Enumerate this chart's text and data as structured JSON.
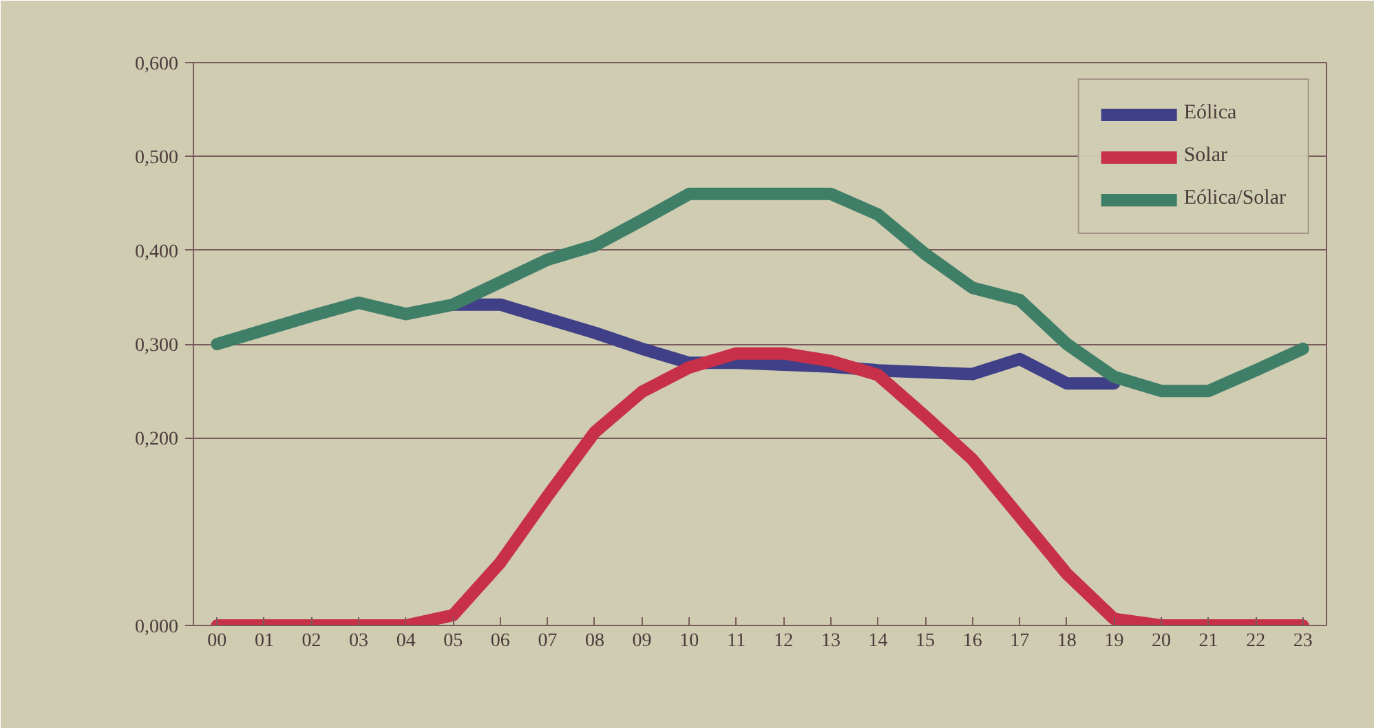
{
  "chart_data": {
    "type": "line",
    "categories": [
      "00",
      "01",
      "02",
      "03",
      "04",
      "05",
      "06",
      "07",
      "08",
      "09",
      "10",
      "11",
      "12",
      "13",
      "14",
      "15",
      "16",
      "17",
      "18",
      "19",
      "20",
      "21",
      "22",
      "23"
    ],
    "series": [
      {
        "name": "Eólica",
        "color": "#404088",
        "values": [
          null,
          null,
          null,
          null,
          null,
          0.342,
          0.342,
          0.327,
          0.312,
          0.295,
          0.28,
          0.28,
          0.278,
          0.276,
          0.272,
          0.27,
          0.268,
          0.284,
          0.258,
          0.258,
          null,
          null,
          null,
          null
        ]
      },
      {
        "name": "Solar",
        "color": "#c8304a",
        "values": [
          0,
          0,
          0,
          0,
          0,
          0.011,
          0.067,
          0.138,
          0.206,
          0.249,
          0.275,
          0.29,
          0.29,
          0.282,
          0.267,
          0.223,
          0.177,
          0.116,
          0.055,
          0.007,
          0,
          0,
          0,
          0
        ]
      },
      {
        "name": "Eólica/Solar",
        "color": "#3f7f68",
        "values": [
          0.3,
          0.315,
          0.33,
          0.344,
          0.332,
          0.342,
          0.366,
          0.39,
          0.405,
          0.432,
          0.46,
          0.46,
          0.46,
          0.46,
          0.438,
          0.396,
          0.36,
          0.347,
          0.3,
          0.265,
          0.25,
          0.25,
          0.272,
          0.295
        ]
      }
    ],
    "ylim": [
      0,
      0.6
    ],
    "yticks": [
      {
        "value": 0,
        "label": "0,000"
      },
      {
        "value": 0.2,
        "label": "0,200"
      },
      {
        "value": 0.3,
        "label": "0,300"
      },
      {
        "value": 0.4,
        "label": "0,400"
      },
      {
        "value": 0.5,
        "label": "0,500"
      },
      {
        "value": 0.6,
        "label": "0,600"
      }
    ],
    "grid": "y",
    "legend": "top right",
    "line_style": "solid",
    "marker": "none"
  }
}
